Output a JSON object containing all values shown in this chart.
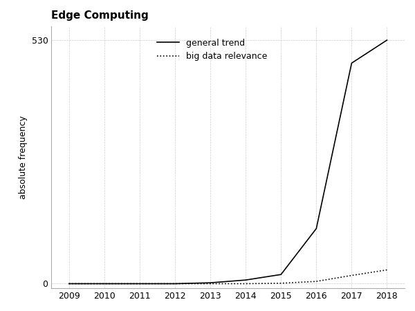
{
  "title": "Edge Computing",
  "ylabel": "absolute frequency",
  "xlabel": "",
  "years": [
    2009,
    2010,
    2011,
    2012,
    2013,
    2014,
    2015,
    2016,
    2017,
    2018
  ],
  "general_trend": [
    0,
    0,
    0,
    0,
    2,
    8,
    20,
    120,
    480,
    530
  ],
  "big_data_relevance": [
    0,
    0,
    0,
    0,
    0,
    0,
    1,
    5,
    18,
    30
  ],
  "legend_general": "general trend",
  "legend_big_data": "big data relevance",
  "line_color": "#000000",
  "grid_color": "#c8c8c8",
  "background_color": "#ffffff",
  "ytick_label": 530,
  "ylim_min": -10,
  "ylim_max": 560
}
